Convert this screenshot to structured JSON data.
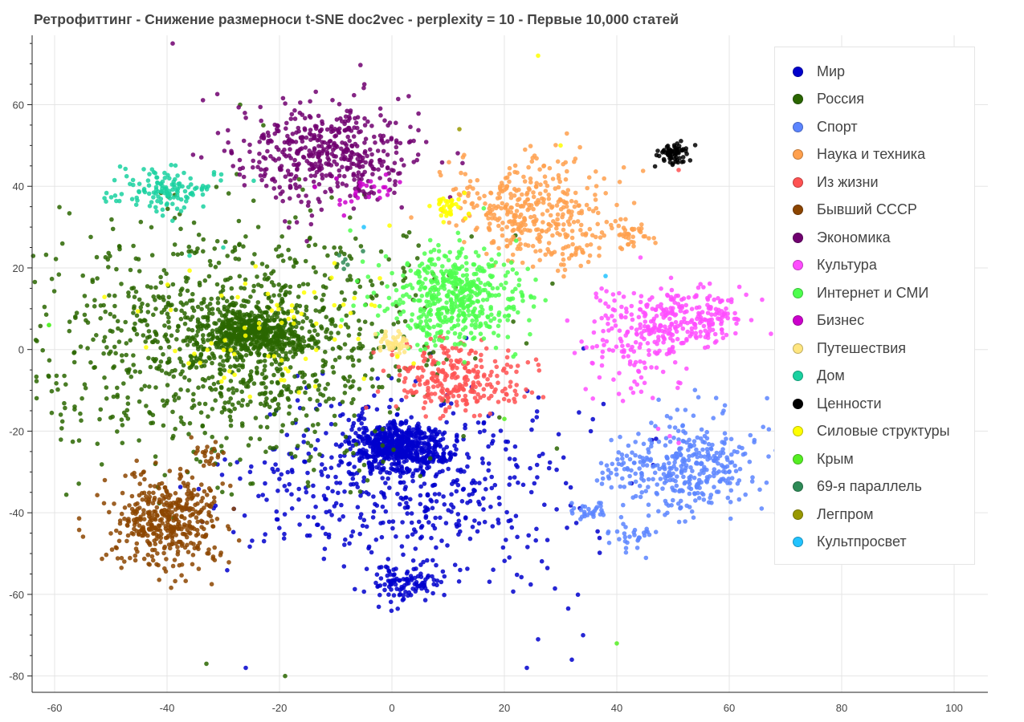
{
  "chart_data": {
    "type": "scatter",
    "title": "Ретрофиттинг - Снижение размерноси t-SNE doc2vec - perplexity = 10 - Первые 10,000 статей",
    "xlabel": "",
    "ylabel": "",
    "xlim": [
      -64,
      106
    ],
    "ylim": [
      -84,
      77
    ],
    "grid": true,
    "legend_position": "top-right",
    "x_ticks": [
      -60,
      -40,
      -20,
      0,
      20,
      40,
      60,
      80,
      100
    ],
    "y_ticks": [
      -80,
      -60,
      -40,
      -20,
      0,
      20,
      40,
      60
    ],
    "series": [
      {
        "name": "Мир",
        "color": "#0000cc",
        "clusters": [
          {
            "cx": 1,
            "cy": -24,
            "sx": 4,
            "sy": 3,
            "n": 550
          },
          {
            "cx": 3,
            "cy": -32,
            "sx": 14,
            "sy": 11,
            "n": 550
          },
          {
            "cx": 2,
            "cy": -57,
            "sx": 3.5,
            "sy": 2.5,
            "n": 110
          }
        ],
        "outliers": [
          [
            26,
            -71
          ],
          [
            32,
            -76
          ],
          [
            34,
            -70
          ],
          [
            24,
            -78
          ],
          [
            -26,
            -78
          ]
        ]
      },
      {
        "name": "Россия",
        "color": "#2a6600",
        "clusters": [
          {
            "cx": -25,
            "cy": 4,
            "sx": 5,
            "sy": 3,
            "n": 500
          },
          {
            "cx": -28,
            "cy": 2,
            "sx": 17,
            "sy": 14,
            "n": 1100
          }
        ],
        "outliers": [
          [
            -33,
            -77
          ],
          [
            -19,
            -80
          ],
          [
            -27,
            60
          ]
        ]
      },
      {
        "name": "Спорт",
        "color": "#5c85ff",
        "clusters": [
          {
            "cx": 53,
            "cy": -29,
            "sx": 6,
            "sy": 6,
            "n": 330
          },
          {
            "cx": 42,
            "cy": -30,
            "sx": 2.5,
            "sy": 2.5,
            "n": 40
          },
          {
            "cx": 35,
            "cy": -40,
            "sx": 1.8,
            "sy": 1.5,
            "n": 30
          },
          {
            "cx": 43,
            "cy": -46,
            "sx": 2,
            "sy": 1.8,
            "n": 30
          }
        ],
        "outliers": [
          [
            59,
            -15
          ]
        ]
      },
      {
        "name": "Наука и техника",
        "color": "#ffa04d",
        "clusters": [
          {
            "cx": 25,
            "cy": 35,
            "sx": 7,
            "sy": 6,
            "n": 350
          },
          {
            "cx": 31,
            "cy": 24,
            "sx": 3,
            "sy": 3,
            "n": 40
          },
          {
            "cx": 42,
            "cy": 28,
            "sx": 2,
            "sy": 1.8,
            "n": 35
          }
        ],
        "outliers": []
      },
      {
        "name": "Из жизни",
        "color": "#ff5252",
        "clusters": [
          {
            "cx": 12,
            "cy": -7,
            "sx": 6,
            "sy": 4.5,
            "n": 260
          }
        ],
        "outliers": [
          [
            51,
            44
          ]
        ]
      },
      {
        "name": "Бывший СССР",
        "color": "#8c4500",
        "clusters": [
          {
            "cx": -40,
            "cy": -42,
            "sx": 5,
            "sy": 6,
            "n": 420
          },
          {
            "cx": -33,
            "cy": -26,
            "sx": 1.5,
            "sy": 1.5,
            "n": 20
          }
        ],
        "outliers": []
      },
      {
        "name": "Экономика",
        "color": "#700070",
        "clusters": [
          {
            "cx": -12,
            "cy": 48,
            "sx": 8,
            "sy": 6,
            "n": 480
          }
        ],
        "outliers": [
          [
            -39,
            75
          ]
        ]
      },
      {
        "name": "Культура",
        "color": "#ff4dff",
        "clusters": [
          {
            "cx": 53,
            "cy": 8,
            "sx": 5,
            "sy": 3.5,
            "n": 200
          },
          {
            "cx": 44,
            "cy": 3,
            "sx": 5,
            "sy": 7,
            "n": 170
          }
        ],
        "outliers": []
      },
      {
        "name": "Интернет и СМИ",
        "color": "#4dff4d",
        "clusters": [
          {
            "cx": 11,
            "cy": 13,
            "sx": 6,
            "sy": 6,
            "n": 500
          }
        ],
        "outliers": [
          [
            -61,
            6
          ]
        ]
      },
      {
        "name": "Бизнес",
        "color": "#cc00cc",
        "clusters": [
          {
            "cx": -5,
            "cy": 38,
            "sx": 4,
            "sy": 3,
            "n": 25
          }
        ],
        "outliers": []
      },
      {
        "name": "Путешествия",
        "color": "#ffe680",
        "clusters": [
          {
            "cx": 0,
            "cy": 2,
            "sx": 1.5,
            "sy": 1.5,
            "n": 45
          }
        ],
        "outliers": []
      },
      {
        "name": "Дом",
        "color": "#1ad1a0",
        "clusters": [
          {
            "cx": -40,
            "cy": 39,
            "sx": 5,
            "sy": 3,
            "n": 130
          }
        ],
        "outliers": [
          [
            -30,
            25
          ],
          [
            -36,
            23
          ]
        ]
      },
      {
        "name": "Ценности",
        "color": "#000000",
        "clusters": [
          {
            "cx": 50,
            "cy": 48,
            "sx": 1.2,
            "sy": 1.2,
            "n": 70
          }
        ],
        "outliers": []
      },
      {
        "name": "Силовые структуры",
        "color": "#ffff00",
        "clusters": [
          {
            "cx": 10,
            "cy": 35,
            "sx": 1.5,
            "sy": 1.5,
            "n": 40
          },
          {
            "cx": -22,
            "cy": 4,
            "sx": 12,
            "sy": 10,
            "n": 70
          }
        ],
        "outliers": [
          [
            26,
            72
          ],
          [
            30,
            50
          ]
        ]
      },
      {
        "name": "Крым",
        "color": "#55ee22",
        "clusters": [],
        "outliers": [
          [
            -61,
            6
          ],
          [
            40,
            -72
          ],
          [
            20,
            -17
          ]
        ]
      },
      {
        "name": "69-я параллель",
        "color": "#2e8b57",
        "clusters": [
          {
            "cx": -9,
            "cy": 22,
            "sx": 1,
            "sy": 1,
            "n": 6
          }
        ],
        "outliers": []
      },
      {
        "name": "Легпром",
        "color": "#999900",
        "clusters": [],
        "outliers": [
          [
            12,
            54
          ]
        ]
      },
      {
        "name": "Культпросвет",
        "color": "#22c3ff",
        "clusters": [],
        "outliers": [
          [
            -5,
            30
          ],
          [
            38,
            18
          ]
        ]
      }
    ]
  }
}
